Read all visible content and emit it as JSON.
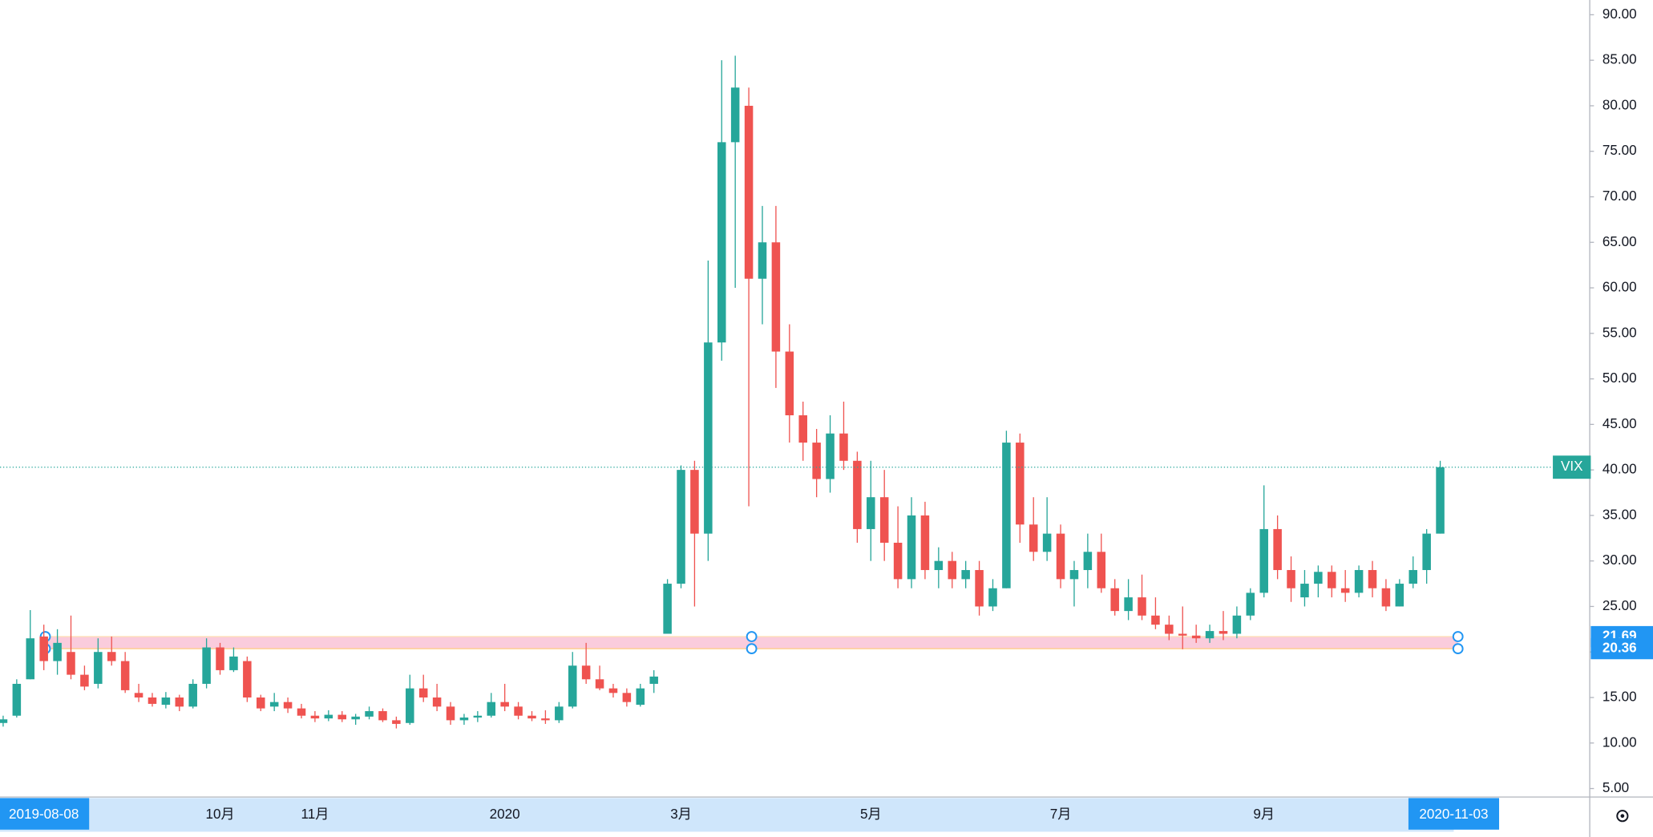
{
  "chart_data": {
    "type": "candlestick",
    "categories": [
      null,
      null,
      null,
      "2019-08-08",
      null,
      null,
      null,
      null,
      null,
      null,
      null,
      null,
      null,
      null,
      null,
      null,
      "10月",
      null,
      null,
      null,
      null,
      null,
      null,
      "11月",
      null,
      null,
      null,
      null,
      null,
      null,
      null,
      null,
      null,
      null,
      null,
      null,
      null,
      "2020",
      null,
      null,
      null,
      null,
      null,
      null,
      null,
      null,
      null,
      null,
      null,
      null,
      "3月",
      null,
      null,
      null,
      null,
      null,
      null,
      null,
      null,
      null,
      null,
      null,
      null,
      null,
      "5月",
      null,
      null,
      null,
      null,
      null,
      null,
      null,
      null,
      null,
      null,
      null,
      null,
      null,
      "7月",
      null,
      null,
      null,
      null,
      null,
      null,
      null,
      null,
      null,
      null,
      null,
      null,
      null,
      null,
      "9月",
      null,
      null,
      null,
      null,
      null,
      null,
      null,
      null,
      null,
      null,
      null,
      null,
      null,
      "2020-11-03"
    ],
    "series": [
      {
        "name": "VIX",
        "up_color": "#26a69a",
        "down_color": "#ef5350",
        "open": [
          12.2,
          13,
          17,
          21.7,
          19,
          20,
          17.5,
          16.5,
          20,
          19,
          15.5,
          15,
          14.2,
          15,
          14,
          16.5,
          20.5,
          18,
          19,
          15,
          14,
          14.5,
          13.8,
          13,
          12.7,
          13.1,
          12.6,
          12.9,
          13.5,
          12.5,
          12.2,
          16,
          15,
          14,
          12.5,
          12.8,
          13,
          14.5,
          14,
          13,
          12.7,
          12.5,
          14,
          18.5,
          17,
          16,
          15.5,
          14.2,
          16.5,
          22,
          27.5,
          40,
          33,
          54,
          76,
          80,
          61,
          65,
          53,
          46,
          43,
          39,
          44,
          41,
          33.5,
          37,
          32,
          28,
          35,
          29,
          30,
          28,
          29,
          25,
          27,
          43,
          34,
          31,
          33,
          28,
          29,
          31,
          27,
          24.5,
          26,
          24,
          23,
          22,
          21.8,
          21.5,
          22.3,
          22,
          24,
          26.5,
          33.5,
          29,
          26,
          27.5,
          28.8,
          27,
          26.5,
          29,
          27,
          25,
          27.5,
          29,
          33,
          null
        ],
        "high": [
          13,
          17,
          24.6,
          23,
          22.5,
          24,
          18.5,
          21.5,
          21.7,
          20,
          16.5,
          15.5,
          15.6,
          15.3,
          17,
          21.5,
          21,
          20.5,
          19.5,
          15.3,
          15.5,
          15,
          14.3,
          13.5,
          13.6,
          13.5,
          13.2,
          14,
          13.8,
          12.9,
          17.5,
          17.5,
          16.5,
          14.5,
          13.2,
          13.5,
          15.5,
          16.5,
          14.5,
          13.5,
          13.6,
          14.5,
          20,
          21,
          18.5,
          16.5,
          16,
          16.5,
          18,
          28,
          40.5,
          41,
          63,
          85,
          85.5,
          82,
          69,
          69,
          56,
          47.5,
          44.5,
          46,
          47.5,
          42,
          41,
          40,
          36,
          37,
          36.5,
          31.5,
          31,
          30,
          30,
          28,
          44.3,
          44,
          37,
          37,
          34,
          30,
          33,
          33,
          28,
          28,
          28.5,
          26,
          24,
          25,
          23,
          23,
          24.5,
          25,
          27,
          38.3,
          35,
          30.5,
          29,
          29.5,
          29.5,
          29,
          29.5,
          30,
          28,
          28,
          30.5,
          33.5,
          41,
          null
        ],
        "low": [
          11.8,
          12.8,
          17,
          18,
          17.5,
          17,
          15.8,
          16,
          18.5,
          15.5,
          14.5,
          14,
          13.8,
          13.5,
          13.8,
          16,
          17.5,
          17.8,
          14.5,
          13.5,
          13.5,
          13.3,
          12.7,
          12.3,
          12.4,
          12.3,
          12,
          12.6,
          12.3,
          11.6,
          12,
          14.5,
          13.5,
          12,
          12,
          12.3,
          12.8,
          13.5,
          12.6,
          12.4,
          12.1,
          12.2,
          13.8,
          16.5,
          15.8,
          15,
          14,
          14,
          15.5,
          22,
          27,
          25,
          30,
          52,
          60,
          36,
          56,
          49,
          43,
          41,
          37,
          37.5,
          40,
          32,
          30,
          30,
          27,
          27,
          28,
          27,
          27,
          27,
          24,
          24.5,
          27,
          32,
          30,
          30,
          27,
          25,
          27,
          26.5,
          24,
          23.5,
          23.5,
          22.5,
          21.3,
          20.3,
          21,
          21,
          21.3,
          21.5,
          23.5,
          26,
          28,
          25.5,
          25,
          26,
          26,
          25.5,
          26,
          26,
          24.5,
          25,
          27,
          27.5,
          33,
          null
        ],
        "close": [
          12.6,
          16.5,
          21.5,
          19,
          21,
          17.5,
          16.2,
          20,
          19,
          15.8,
          15,
          14.3,
          15,
          14,
          16.5,
          20.5,
          18,
          19.5,
          15,
          13.8,
          14.5,
          13.8,
          13,
          12.7,
          13.1,
          12.6,
          12.9,
          13.5,
          12.5,
          12.1,
          16,
          15,
          14,
          12.5,
          12.8,
          13,
          14.5,
          14,
          13,
          12.7,
          12.5,
          14,
          18.5,
          17,
          16,
          15.5,
          14.5,
          16,
          17.3,
          27.5,
          40,
          33,
          54,
          76,
          82,
          61,
          65,
          53,
          46,
          43,
          39,
          44,
          41,
          33.5,
          37,
          32,
          28,
          35,
          29,
          30,
          28,
          29,
          25,
          27,
          43,
          34,
          31,
          33,
          28,
          29,
          31,
          27,
          24.5,
          26,
          24,
          23,
          22,
          21.8,
          21.5,
          22.3,
          22,
          24,
          26.5,
          33.5,
          29,
          27,
          27.5,
          28.8,
          27,
          26.5,
          29,
          27,
          25,
          27.5,
          29,
          33,
          40.3,
          null
        ]
      }
    ],
    "zone": {
      "low": 20.36,
      "high": 21.69,
      "color": "#f8bbd0"
    },
    "ylim": [
      4.07,
      91.62
    ],
    "yticks": [
      {
        "value": 5,
        "label": "5.00"
      },
      {
        "value": 10,
        "label": "10.00"
      },
      {
        "value": 15,
        "label": "15.00"
      },
      {
        "value": 20,
        "label": "20.00"
      },
      {
        "value": 25,
        "label": "25.00"
      },
      {
        "value": 30,
        "label": "30.00"
      },
      {
        "value": 35,
        "label": "35.00"
      },
      {
        "value": 40,
        "label": "40.00"
      },
      {
        "value": 45,
        "label": "45.00"
      },
      {
        "value": 50,
        "label": "50.00"
      },
      {
        "value": 55,
        "label": "55.00"
      },
      {
        "value": 60,
        "label": "60.00"
      },
      {
        "value": 65,
        "label": "65.00"
      },
      {
        "value": 70,
        "label": "70.00"
      },
      {
        "value": 75,
        "label": "75.00"
      },
      {
        "value": 80,
        "label": "80.00"
      },
      {
        "value": 85,
        "label": "85.00"
      },
      {
        "value": 90,
        "label": "90.00"
      }
    ]
  }
}
